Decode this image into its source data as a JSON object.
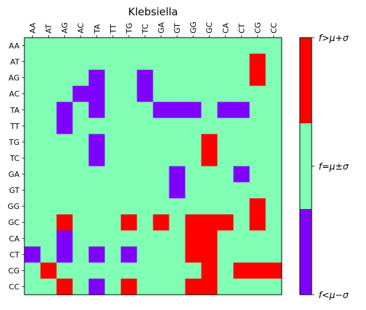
{
  "chart_data": {
    "type": "heatmap",
    "title": "Klebsiella",
    "labels": [
      "AA",
      "AT",
      "AG",
      "AC",
      "TA",
      "TT",
      "TG",
      "TC",
      "GA",
      "GT",
      "GG",
      "GC",
      "CA",
      "CT",
      "CG",
      "CC"
    ],
    "levels": [
      {
        "value": 0,
        "label": "f<μ−σ",
        "color": "#8000ff"
      },
      {
        "value": 1,
        "label": "f=μ±σ",
        "color": "#80ffb4"
      },
      {
        "value": 2,
        "label": "f>μ+σ",
        "color": "#ff0000"
      }
    ],
    "matrix": [
      [
        1,
        1,
        1,
        1,
        1,
        1,
        1,
        1,
        1,
        1,
        1,
        1,
        1,
        1,
        1,
        1
      ],
      [
        1,
        1,
        1,
        1,
        1,
        1,
        1,
        1,
        1,
        1,
        1,
        1,
        1,
        1,
        2,
        1
      ],
      [
        1,
        1,
        1,
        1,
        0,
        1,
        1,
        0,
        1,
        1,
        1,
        1,
        1,
        1,
        2,
        1
      ],
      [
        1,
        1,
        1,
        0,
        0,
        1,
        1,
        0,
        1,
        1,
        1,
        1,
        1,
        1,
        1,
        1
      ],
      [
        1,
        1,
        0,
        1,
        0,
        1,
        1,
        1,
        0,
        0,
        0,
        1,
        0,
        0,
        1,
        1
      ],
      [
        1,
        1,
        0,
        1,
        1,
        1,
        1,
        1,
        1,
        1,
        1,
        1,
        1,
        1,
        1,
        1
      ],
      [
        1,
        1,
        1,
        1,
        0,
        1,
        1,
        1,
        1,
        1,
        1,
        2,
        1,
        1,
        1,
        1
      ],
      [
        1,
        1,
        1,
        1,
        0,
        1,
        1,
        1,
        1,
        1,
        1,
        2,
        1,
        1,
        1,
        1
      ],
      [
        1,
        1,
        1,
        1,
        1,
        1,
        1,
        1,
        1,
        0,
        1,
        1,
        1,
        0,
        1,
        1
      ],
      [
        1,
        1,
        1,
        1,
        1,
        1,
        1,
        1,
        1,
        0,
        1,
        1,
        1,
        1,
        1,
        1
      ],
      [
        1,
        1,
        1,
        1,
        1,
        1,
        1,
        1,
        1,
        1,
        1,
        1,
        1,
        1,
        2,
        1
      ],
      [
        1,
        1,
        2,
        1,
        1,
        1,
        2,
        1,
        2,
        1,
        2,
        2,
        2,
        1,
        2,
        1
      ],
      [
        1,
        1,
        0,
        1,
        1,
        1,
        1,
        1,
        1,
        1,
        2,
        2,
        1,
        1,
        1,
        1
      ],
      [
        0,
        1,
        0,
        1,
        0,
        1,
        0,
        1,
        1,
        1,
        2,
        2,
        1,
        1,
        1,
        1
      ],
      [
        1,
        2,
        1,
        1,
        1,
        1,
        1,
        1,
        1,
        1,
        1,
        2,
        1,
        2,
        2,
        2
      ],
      [
        1,
        1,
        2,
        1,
        0,
        1,
        2,
        1,
        1,
        1,
        2,
        2,
        1,
        1,
        1,
        1
      ]
    ]
  }
}
